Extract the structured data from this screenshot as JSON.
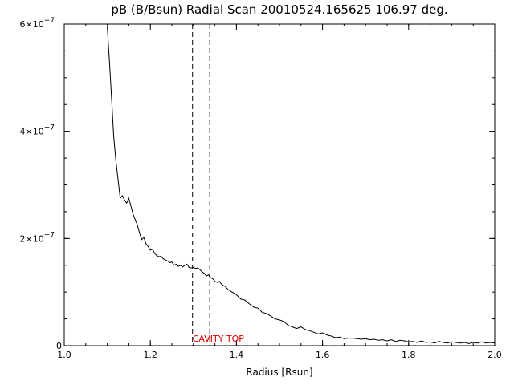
{
  "chart_data": {
    "type": "line",
    "title": "pB (B/Bsun) Radial Scan 20010524.165625 106.97 deg.",
    "xlabel": "Radius [Rsun]",
    "ylabel": "",
    "xlim": [
      1.0,
      2.0
    ],
    "ylim": [
      0,
      6e-07
    ],
    "x_ticks": [
      1.0,
      1.2,
      1.4,
      1.6,
      1.8,
      2.0
    ],
    "x_tick_labels": [
      "1.0",
      "1.2",
      "1.4",
      "1.6",
      "1.8",
      "2.0"
    ],
    "y_ticks": [
      {
        "value": 0,
        "mantissa": "0",
        "exponent": ""
      },
      {
        "value": 2e-07,
        "mantissa": "2×10",
        "exponent": "−7"
      },
      {
        "value": 4e-07,
        "mantissa": "4×10",
        "exponent": "−7"
      },
      {
        "value": 6e-07,
        "mantissa": "6×10",
        "exponent": "−7"
      }
    ],
    "series": [
      {
        "x": [
          1.1,
          1.105,
          1.11,
          1.115,
          1.12,
          1.125,
          1.13,
          1.135,
          1.14,
          1.145,
          1.15,
          1.155,
          1.16,
          1.165,
          1.17,
          1.175,
          1.18,
          1.185,
          1.19,
          1.195,
          1.2,
          1.205,
          1.21,
          1.215,
          1.22,
          1.225,
          1.23,
          1.235,
          1.24,
          1.245,
          1.25,
          1.255,
          1.26,
          1.265,
          1.27,
          1.275,
          1.28,
          1.285,
          1.29,
          1.295,
          1.3,
          1.305,
          1.31,
          1.315,
          1.32,
          1.325,
          1.33,
          1.335,
          1.34,
          1.345,
          1.35,
          1.355,
          1.36,
          1.365,
          1.37,
          1.375,
          1.38,
          1.39,
          1.4,
          1.41,
          1.42,
          1.43,
          1.44,
          1.45,
          1.46,
          1.47,
          1.48,
          1.49,
          1.5,
          1.51,
          1.52,
          1.53,
          1.54,
          1.55,
          1.56,
          1.57,
          1.58,
          1.59,
          1.6,
          1.61,
          1.62,
          1.63,
          1.64,
          1.65,
          1.66,
          1.67,
          1.68,
          1.69,
          1.7,
          1.71,
          1.72,
          1.73,
          1.74,
          1.75,
          1.76,
          1.77,
          1.78,
          1.79,
          1.8,
          1.81,
          1.82,
          1.83,
          1.84,
          1.85,
          1.86,
          1.87,
          1.88,
          1.89,
          1.9,
          1.91,
          1.92,
          1.93,
          1.94,
          1.95,
          1.96,
          1.97,
          1.98,
          1.99,
          2.0
        ],
        "y": [
          5.95e-07,
          5.3e-07,
          4.6e-07,
          3.9e-07,
          3.45e-07,
          3.1e-07,
          2.75e-07,
          2.8e-07,
          2.72e-07,
          2.66e-07,
          2.75e-07,
          2.6e-07,
          2.45e-07,
          2.35e-07,
          2.25e-07,
          2.1e-07,
          1.98e-07,
          2.02e-07,
          1.9e-07,
          1.85e-07,
          1.78e-07,
          1.8e-07,
          1.72e-07,
          1.68e-07,
          1.66e-07,
          1.67e-07,
          1.62e-07,
          1.6e-07,
          1.58e-07,
          1.55e-07,
          1.56e-07,
          1.5e-07,
          1.52e-07,
          1.48e-07,
          1.5e-07,
          1.47e-07,
          1.5e-07,
          1.52e-07,
          1.46e-07,
          1.45e-07,
          1.46e-07,
          1.44e-07,
          1.45e-07,
          1.42e-07,
          1.38e-07,
          1.35e-07,
          1.3e-07,
          1.32e-07,
          1.27e-07,
          1.25e-07,
          1.2e-07,
          1.18e-07,
          1.2e-07,
          1.15e-07,
          1.12e-07,
          1.1e-07,
          1.05e-07,
          1e-07,
          9.5e-08,
          8.7e-08,
          8.5e-08,
          7.8e-08,
          7.2e-08,
          7e-08,
          6.2e-08,
          6e-08,
          5.5e-08,
          5e-08,
          4.8e-08,
          4.5e-08,
          3.8e-08,
          3.5e-08,
          3.2e-08,
          3.5e-08,
          3e-08,
          2.8e-08,
          2.5e-08,
          2.2e-08,
          2.4e-08,
          2e-08,
          1.8e-08,
          1.5e-08,
          1.6e-08,
          1.3e-08,
          1.4e-08,
          1.4e-08,
          1.3e-08,
          1.2e-08,
          1.3e-08,
          1.1e-08,
          1.2e-08,
          1e-08,
          1.1e-08,
          9e-09,
          1.1e-08,
          8e-09,
          1e-08,
          9e-09,
          7e-09,
          8e-09,
          6e-09,
          9e-09,
          6e-09,
          7e-09,
          5e-09,
          8e-09,
          6e-09,
          5e-09,
          7e-09,
          6e-09,
          5e-09,
          6e-09,
          4e-09,
          6e-09,
          5e-09,
          7e-09,
          5e-09,
          6e-09,
          5e-09
        ]
      }
    ],
    "vlines": [
      1.298,
      1.338
    ],
    "annotation": {
      "text": "CAVITY TOP",
      "x": 1.298
    },
    "grid": false,
    "legend": "none"
  }
}
